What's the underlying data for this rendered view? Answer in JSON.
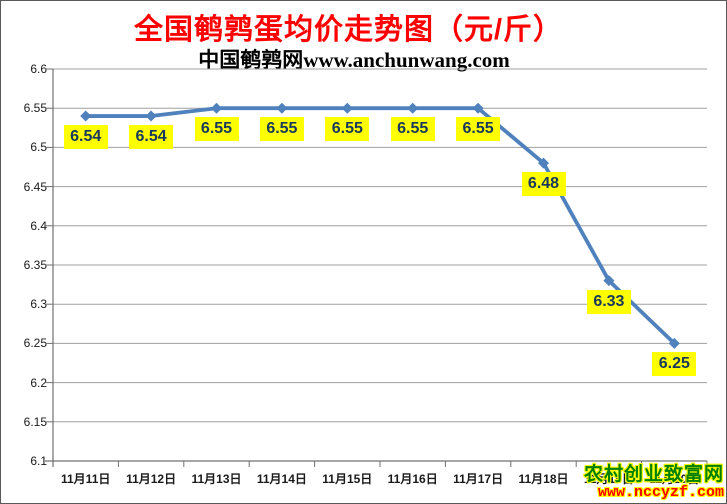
{
  "title": "全国鹌鹑蛋均价走势图（元/斤）",
  "subtitle": "中国鹌鹑网www.anchunwang.com",
  "watermark": {
    "line1": "农村创业致富网",
    "line2": "www.nccyzf.com",
    "line1_color": "#008000",
    "line2_color": "#ff0000",
    "outline_color": "#ffff00"
  },
  "chart_data": {
    "type": "line",
    "title": "全国鹌鹑蛋均价走势图（元/斤）",
    "subtitle": "中国鹌鹑网www.anchunwang.com",
    "categories": [
      "11月11日",
      "11月12日",
      "11月13日",
      "11月14日",
      "11月15日",
      "11月16日",
      "11月17日",
      "11月18日",
      "11月19日",
      "11月20日"
    ],
    "values": [
      6.54,
      6.54,
      6.55,
      6.55,
      6.55,
      6.55,
      6.55,
      6.48,
      6.33,
      6.25
    ],
    "data_labels": [
      "6.54",
      "6.54",
      "6.55",
      "6.55",
      "6.55",
      "6.55",
      "6.55",
      "6.48",
      "6.33",
      "6.25"
    ],
    "xlabel": "",
    "ylabel": "",
    "ylim": [
      6.1,
      6.6
    ],
    "ytick_step": 0.05,
    "grid": true,
    "legend": "none",
    "marker": "diamond",
    "line_color": "#4f81bd",
    "marker_color": "#4f81bd",
    "gridline_color": "#a0a0a0",
    "axis_color": "#707070",
    "label_bg": "#ffff00",
    "label_text_color": "#17375e",
    "tick_label_color": "#1a1a1a"
  }
}
